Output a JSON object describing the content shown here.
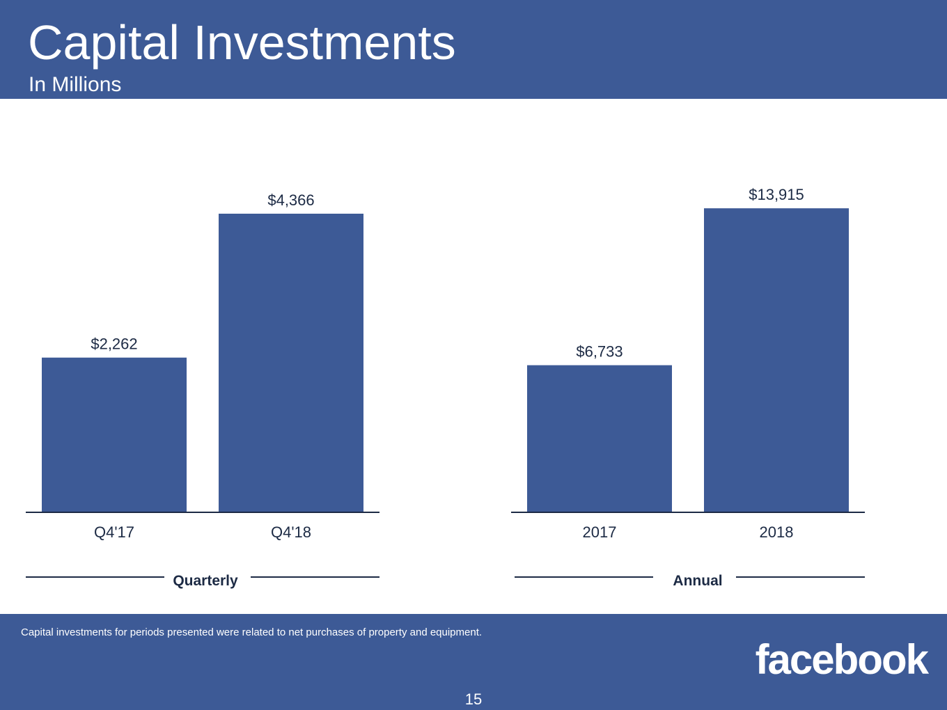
{
  "header": {
    "title": "Capital Investments",
    "subtitle": "In Millions"
  },
  "colors": {
    "brand": "#3d5a96",
    "bar": "#3d5a96",
    "text_dark": "#1c2a44"
  },
  "chart_data": [
    {
      "type": "bar",
      "group_label": "Quarterly",
      "categories": [
        "Q4'17",
        "Q4'18"
      ],
      "values": [
        2262,
        4366
      ],
      "value_labels": [
        "$2,262",
        "$4,366"
      ],
      "title": "",
      "xlabel": "",
      "ylabel": "",
      "ylim": [
        0,
        4600
      ],
      "grid": false
    },
    {
      "type": "bar",
      "group_label": "Annual",
      "categories": [
        "2017",
        "2018"
      ],
      "values": [
        6733,
        13915
      ],
      "value_labels": [
        "$6,733",
        "$13,915"
      ],
      "title": "",
      "xlabel": "",
      "ylabel": "",
      "ylim": [
        0,
        14400
      ],
      "grid": false
    }
  ],
  "footer": {
    "footnote": "Capital investments for periods presented were related to net purchases of property and equipment.",
    "logo": "facebook",
    "page_number": "15"
  }
}
